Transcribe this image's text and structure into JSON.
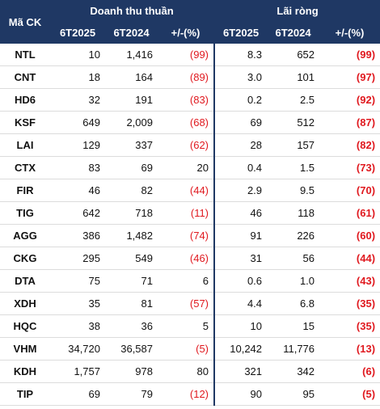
{
  "header": {
    "code": "Mã CK",
    "groups": [
      "Doanh thu thuần",
      "Lãi ròng"
    ],
    "columns": [
      "6T2025",
      "6T2024",
      "+/-(%)",
      "6T2025",
      "6T2024",
      "+/-(%)"
    ]
  },
  "table": {
    "rows": [
      [
        "NTL",
        "10",
        "1,416",
        "(99)",
        "8.3",
        "652",
        "(99)"
      ],
      [
        "CNT",
        "18",
        "164",
        "(89)",
        "3.0",
        "101",
        "(97)"
      ],
      [
        "HD6",
        "32",
        "191",
        "(83)",
        "0.2",
        "2.5",
        "(92)"
      ],
      [
        "KSF",
        "649",
        "2,009",
        "(68)",
        "69",
        "512",
        "(87)"
      ],
      [
        "LAI",
        "129",
        "337",
        "(62)",
        "28",
        "157",
        "(82)"
      ],
      [
        "CTX",
        "83",
        "69",
        "20",
        "0.4",
        "1.5",
        "(73)"
      ],
      [
        "FIR",
        "46",
        "82",
        "(44)",
        "2.9",
        "9.5",
        "(70)"
      ],
      [
        "TIG",
        "642",
        "718",
        "(11)",
        "46",
        "118",
        "(61)"
      ],
      [
        "AGG",
        "386",
        "1,482",
        "(74)",
        "91",
        "226",
        "(60)"
      ],
      [
        "CKG",
        "295",
        "549",
        "(46)",
        "31",
        "56",
        "(44)"
      ],
      [
        "DTA",
        "75",
        "71",
        "6",
        "0.6",
        "1.0",
        "(43)"
      ],
      [
        "XDH",
        "35",
        "81",
        "(57)",
        "4.4",
        "6.8",
        "(35)"
      ],
      [
        "HQC",
        "38",
        "36",
        "5",
        "10",
        "15",
        "(35)"
      ],
      [
        "VHM",
        "34,720",
        "36,587",
        "(5)",
        "10,242",
        "11,776",
        "(13)"
      ],
      [
        "KDH",
        "1,757",
        "978",
        "80",
        "321",
        "342",
        "(6)"
      ],
      [
        "TIP",
        "69",
        "79",
        "(12)",
        "90",
        "95",
        "(5)"
      ]
    ]
  }
}
